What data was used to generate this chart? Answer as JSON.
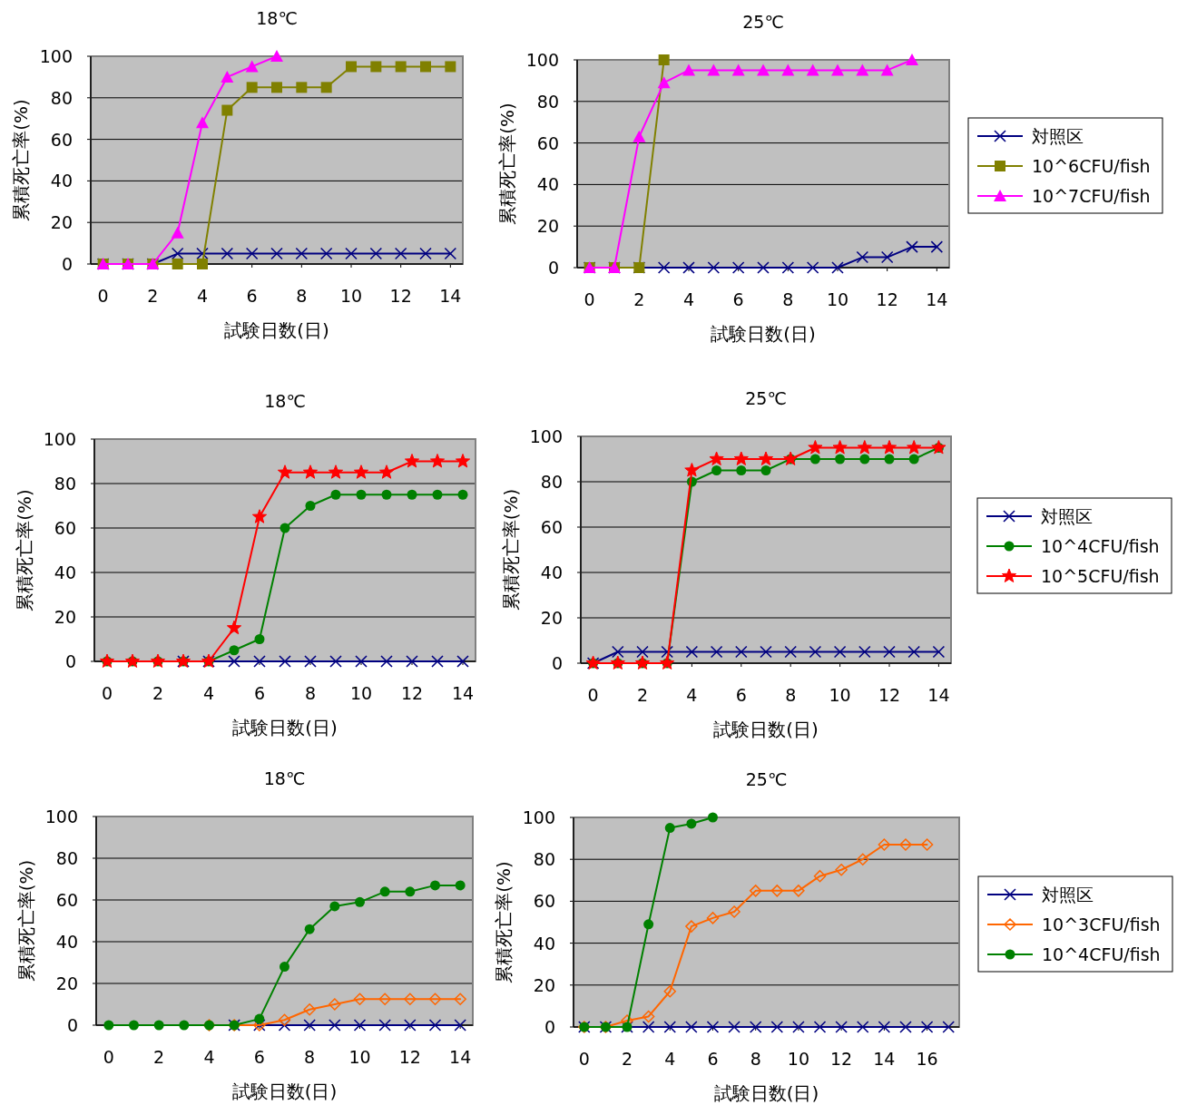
{
  "chart_data": [
    {
      "type": "line",
      "title": "18℃",
      "xlabel": "試験日数(日)",
      "ylabel": "累積死亡率(%)",
      "xlim": [
        -0.5,
        14.5
      ],
      "xticks": [
        0,
        2,
        4,
        6,
        8,
        10,
        12,
        14
      ],
      "ylim": [
        0,
        100
      ],
      "yticks": [
        0,
        20,
        40,
        60,
        80,
        100
      ],
      "grid": "y",
      "legend": false,
      "series": [
        {
          "color": "#000080",
          "marker": "cross",
          "x": [
            0,
            1,
            2,
            3,
            4,
            5,
            6,
            7,
            8,
            9,
            10,
            11,
            12,
            13,
            14
          ],
          "values": [
            0,
            0,
            0,
            5,
            5,
            5,
            5,
            5,
            5,
            5,
            5,
            5,
            5,
            5,
            5
          ]
        },
        {
          "color": "#808000",
          "marker": "square",
          "x": [
            0,
            1,
            2,
            3,
            4,
            5,
            6,
            7,
            8,
            9,
            10,
            11,
            12,
            13,
            14
          ],
          "values": [
            0,
            0,
            0,
            0,
            0,
            74,
            85,
            85,
            85,
            85,
            95,
            95,
            95,
            95,
            95
          ]
        },
        {
          "color": "#ff00ff",
          "marker": "triangle",
          "x": [
            0,
            1,
            2,
            3,
            4,
            5,
            6,
            7
          ],
          "values": [
            0,
            0,
            0,
            15,
            68,
            90,
            95,
            100
          ]
        }
      ]
    },
    {
      "type": "line",
      "title": "25℃",
      "xlabel": "試験日数(日)",
      "ylabel": "累積死亡率(%)",
      "xlim": [
        -0.5,
        14.5
      ],
      "xticks": [
        0,
        2,
        4,
        6,
        8,
        10,
        12,
        14
      ],
      "ylim": [
        0,
        100
      ],
      "yticks": [
        0,
        20,
        40,
        60,
        80,
        100
      ],
      "grid": "y",
      "legend": "right",
      "series": [
        {
          "name": "対照区",
          "color": "#000080",
          "marker": "cross",
          "x": [
            0,
            1,
            2,
            3,
            4,
            5,
            6,
            7,
            8,
            9,
            10,
            11,
            12,
            13,
            14
          ],
          "values": [
            0,
            0,
            0,
            0,
            0,
            0,
            0,
            0,
            0,
            0,
            0,
            5,
            5,
            10,
            10
          ]
        },
        {
          "name": "10^6CFU/fish",
          "color": "#808000",
          "marker": "square",
          "x": [
            0,
            1,
            2,
            3
          ],
          "values": [
            0,
            0,
            0,
            100
          ]
        },
        {
          "name": "10^7CFU/fish",
          "color": "#ff00ff",
          "marker": "triangle",
          "x": [
            0,
            1,
            2,
            3,
            4,
            5,
            6,
            7,
            8,
            9,
            10,
            11,
            12,
            13
          ],
          "values": [
            0,
            0,
            63,
            89,
            95,
            95,
            95,
            95,
            95,
            95,
            95,
            95,
            95,
            100
          ]
        }
      ]
    },
    {
      "type": "line",
      "title": "18℃",
      "xlabel": "試験日数(日)",
      "ylabel": "累積死亡率(%)",
      "xlim": [
        -0.5,
        14.5
      ],
      "xticks": [
        0,
        2,
        4,
        6,
        8,
        10,
        12,
        14
      ],
      "ylim": [
        0,
        100
      ],
      "yticks": [
        0,
        20,
        40,
        60,
        80,
        100
      ],
      "grid": "y",
      "legend": false,
      "series": [
        {
          "color": "#000080",
          "marker": "cross",
          "x": [
            3,
            4,
            5,
            6,
            7,
            8,
            9,
            10,
            11,
            12,
            13,
            14
          ],
          "values": [
            0,
            0,
            0,
            0,
            0,
            0,
            0,
            0,
            0,
            0,
            0,
            0
          ]
        },
        {
          "color": "#008000",
          "marker": "circle",
          "x": [
            0,
            1,
            2,
            3,
            4,
            5,
            6,
            7,
            8,
            9,
            10,
            11,
            12,
            13,
            14
          ],
          "values": [
            0,
            0,
            0,
            0,
            0,
            5,
            10,
            60,
            70,
            75,
            75,
            75,
            75,
            75,
            75
          ]
        },
        {
          "color": "#ff0000",
          "marker": "star",
          "x": [
            0,
            1,
            2,
            3,
            4,
            5,
            6,
            7,
            8,
            9,
            10,
            11,
            12,
            13,
            14
          ],
          "values": [
            0,
            0,
            0,
            0,
            0,
            15,
            65,
            85,
            85,
            85,
            85,
            85,
            90,
            90,
            90
          ]
        }
      ]
    },
    {
      "type": "line",
      "title": "25℃",
      "xlabel": "試験日数(日)",
      "ylabel": "累積死亡率(%)",
      "xlim": [
        -0.5,
        14.5
      ],
      "xticks": [
        0,
        2,
        4,
        6,
        8,
        10,
        12,
        14
      ],
      "ylim": [
        0,
        100
      ],
      "yticks": [
        0,
        20,
        40,
        60,
        80,
        100
      ],
      "grid": "y",
      "legend": "right",
      "series": [
        {
          "name": "対照区",
          "color": "#000080",
          "marker": "cross",
          "x": [
            0,
            1,
            2,
            3,
            4,
            5,
            6,
            7,
            8,
            9,
            10,
            11,
            12,
            13,
            14
          ],
          "values": [
            0,
            5,
            5,
            5,
            5,
            5,
            5,
            5,
            5,
            5,
            5,
            5,
            5,
            5,
            5
          ]
        },
        {
          "name": "10^4CFU/fish",
          "color": "#008000",
          "marker": "circle",
          "x": [
            0,
            1,
            2,
            3,
            4,
            5,
            6,
            7,
            8,
            9,
            10,
            11,
            12,
            13,
            14
          ],
          "values": [
            0,
            0,
            0,
            0,
            80,
            85,
            85,
            85,
            90,
            90,
            90,
            90,
            90,
            90,
            95
          ]
        },
        {
          "name": "10^5CFU/fish",
          "color": "#ff0000",
          "marker": "star",
          "x": [
            0,
            1,
            2,
            3,
            4,
            5,
            6,
            7,
            8,
            9,
            10,
            11,
            12,
            13,
            14
          ],
          "values": [
            0,
            0,
            0,
            0,
            85,
            90,
            90,
            90,
            90,
            95,
            95,
            95,
            95,
            95,
            95
          ]
        }
      ]
    },
    {
      "type": "line",
      "title": "18℃",
      "xlabel": "試験日数(日)",
      "ylabel": "累積死亡率(%)",
      "xlim": [
        -0.5,
        14.5
      ],
      "xticks": [
        0,
        2,
        4,
        6,
        8,
        10,
        12,
        14
      ],
      "ylim": [
        0,
        100
      ],
      "yticks": [
        0,
        20,
        40,
        60,
        80,
        100
      ],
      "grid": "y",
      "legend": false,
      "series": [
        {
          "color": "#000080",
          "marker": "cross",
          "x": [
            5,
            6,
            7,
            8,
            9,
            10,
            11,
            12,
            13,
            14
          ],
          "values": [
            0,
            0,
            0,
            0,
            0,
            0,
            0,
            0,
            0,
            0
          ]
        },
        {
          "color": "#ff6600",
          "marker": "diamond",
          "x": [
            4,
            5,
            6,
            7,
            8,
            9,
            10,
            11,
            12,
            13,
            14
          ],
          "values": [
            0,
            0,
            0,
            2.5,
            7.5,
            10,
            12.5,
            12.5,
            12.5,
            12.5,
            12.5
          ]
        },
        {
          "color": "#008000",
          "marker": "circle",
          "x": [
            0,
            1,
            2,
            3,
            4,
            5,
            6,
            7,
            8,
            9,
            10,
            11,
            12,
            13,
            14
          ],
          "values": [
            0,
            0,
            0,
            0,
            0,
            0,
            3,
            28,
            46,
            57,
            59,
            64,
            64,
            67,
            67
          ]
        }
      ]
    },
    {
      "type": "line",
      "title": "25℃",
      "xlabel": "試験日数(日)",
      "ylabel": "累積死亡率(%)",
      "xlim": [
        -0.5,
        17.5
      ],
      "xticks": [
        0,
        2,
        4,
        6,
        8,
        10,
        12,
        14,
        16
      ],
      "ylim": [
        0,
        100
      ],
      "yticks": [
        0,
        20,
        40,
        60,
        80,
        100
      ],
      "grid": "y",
      "legend": "right",
      "series": [
        {
          "name": "対照区",
          "color": "#000080",
          "marker": "cross",
          "x": [
            0,
            1,
            2,
            3,
            4,
            5,
            6,
            7,
            8,
            9,
            10,
            11,
            12,
            13,
            14,
            15,
            16,
            17
          ],
          "values": [
            0,
            0,
            0,
            0,
            0,
            0,
            0,
            0,
            0,
            0,
            0,
            0,
            0,
            0,
            0,
            0,
            0,
            0
          ]
        },
        {
          "name": "10^3CFU/fish",
          "color": "#ff6600",
          "marker": "diamond",
          "x": [
            0,
            1,
            2,
            3,
            4,
            5,
            6,
            7,
            8,
            9,
            10,
            11,
            12,
            13,
            14,
            15,
            16
          ],
          "values": [
            0,
            0,
            3,
            5,
            17,
            48,
            52,
            55,
            65,
            65,
            65,
            72,
            75,
            80,
            87,
            87,
            87
          ]
        },
        {
          "name": "10^4CFU/fish",
          "color": "#008000",
          "marker": "circle",
          "x": [
            0,
            1,
            2,
            3,
            4,
            5,
            6
          ],
          "values": [
            0,
            0,
            0,
            49,
            95,
            97,
            100
          ]
        }
      ]
    }
  ]
}
